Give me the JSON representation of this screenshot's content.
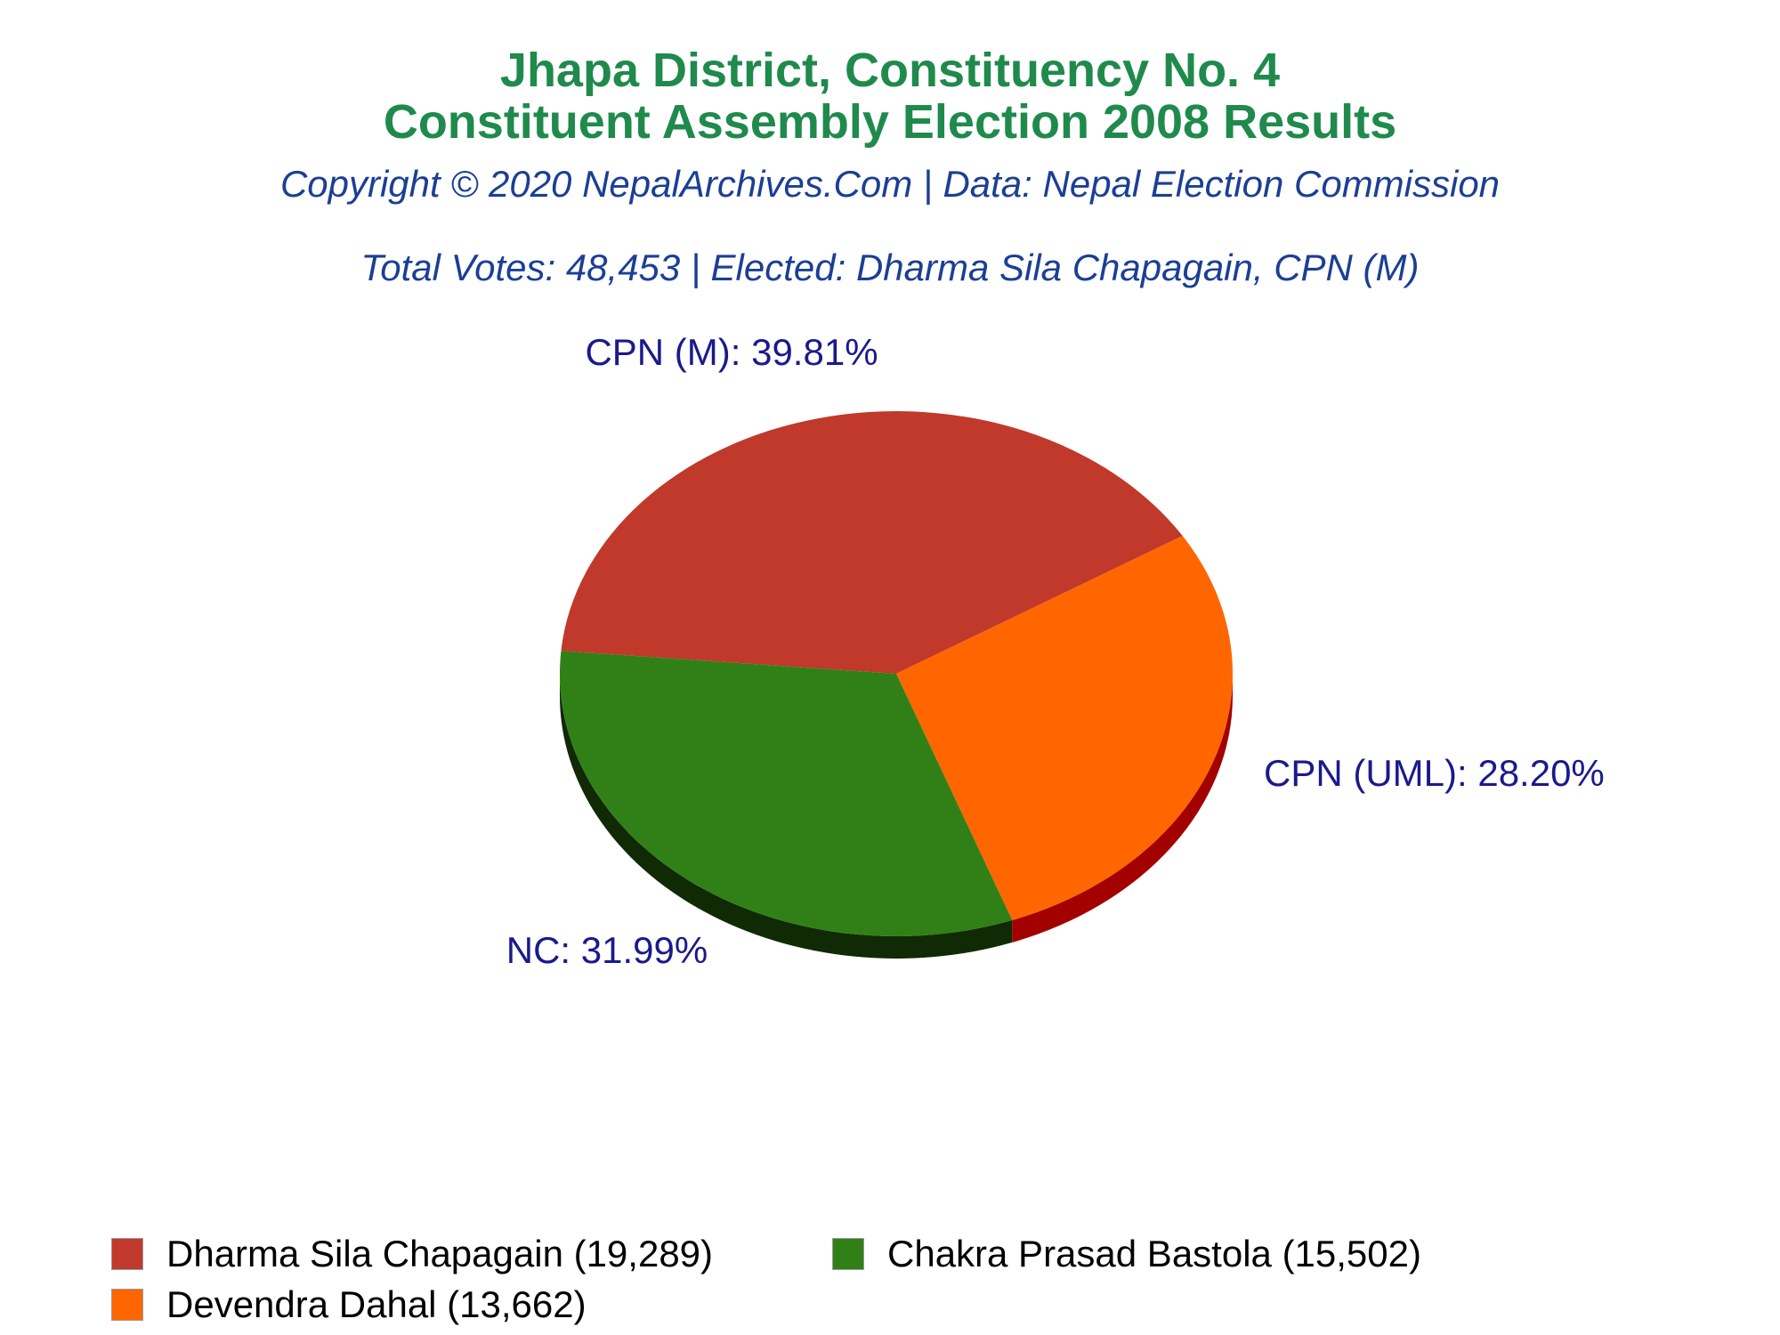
{
  "title_line1": "Jhapa District, Constituency No. 4",
  "title_line2": "Constituent Assembly Election 2008 Results",
  "subtitle_copyright": "Copyright © 2020 NepalArchives.Com | Data: Nepal Election Commission",
  "subtitle_summary": "Total Votes: 48,453 | Elected: Dharma Sila Chapagain, CPN (M)",
  "colors": {
    "title": "#1f8a4c",
    "subtitle": "#1b3f94",
    "slice_label": "#1a1a8c"
  },
  "chart_data": {
    "type": "pie",
    "three_d": true,
    "slices": [
      {
        "party": "CPN (M)",
        "candidate": "Dharma Sila Chapagain",
        "votes": 19289,
        "percent": 39.81,
        "label": "CPN (M): 39.81%",
        "legend": "Dharma Sila Chapagain (19,289)",
        "color": "#c0392b",
        "side_color": "#8b0000"
      },
      {
        "party": "CPN (UML)",
        "candidate": "Devendra Dahal",
        "votes": 13662,
        "percent": 28.2,
        "label": "CPN (UML): 28.20%",
        "legend": "Devendra Dahal (13,662)",
        "color": "#ff6600",
        "side_color": "#a30000"
      },
      {
        "party": "NC",
        "candidate": "Chakra Prasad Bastola",
        "votes": 15502,
        "percent": 31.99,
        "label": "NC: 31.99%",
        "legend": "Chakra Prasad Bastola (15,502)",
        "color": "#318017",
        "side_color": "#0f2a05"
      }
    ],
    "legend_position": "bottom"
  }
}
